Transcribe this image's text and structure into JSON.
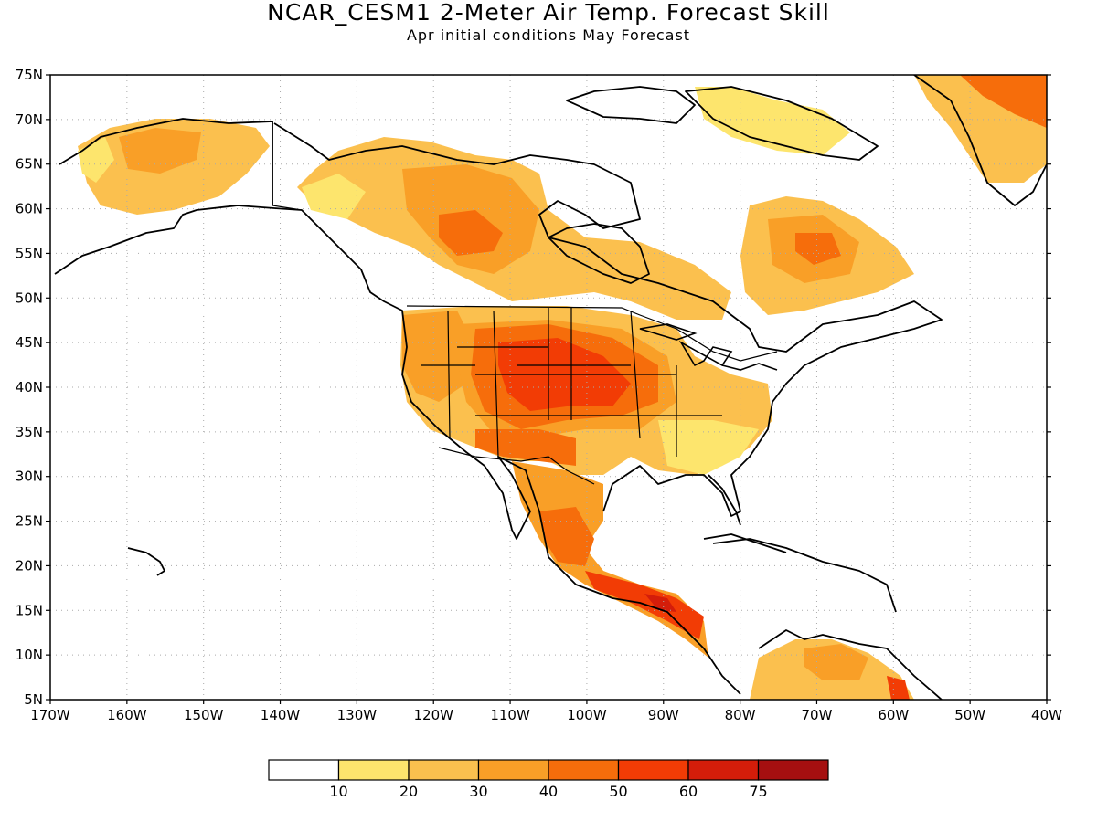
{
  "title": "NCAR_CESM1 2-Meter Air Temp. Forecast Skill",
  "subtitle": "Apr initial conditions  May Forecast",
  "map": {
    "region": "North America",
    "lon_range": [
      -170,
      -40
    ],
    "lat_range": [
      5,
      75
    ],
    "gridlines": "dotted"
  },
  "axes": {
    "lat_ticks": [
      "75N",
      "70N",
      "65N",
      "60N",
      "55N",
      "50N",
      "45N",
      "40N",
      "35N",
      "30N",
      "25N",
      "20N",
      "15N",
      "10N",
      "5N"
    ],
    "lon_ticks": [
      "170W",
      "160W",
      "150W",
      "140W",
      "130W",
      "120W",
      "110W",
      "100W",
      "90W",
      "80W",
      "70W",
      "60W",
      "50W",
      "40W"
    ]
  },
  "colorbar": {
    "labels": [
      "10",
      "20",
      "30",
      "40",
      "50",
      "60",
      "75"
    ],
    "colors": [
      "#ffffff",
      "#fde56d",
      "#fbc04e",
      "#f99f27",
      "#f66d0b",
      "#f23c05",
      "#d41d0a",
      "#a50f10"
    ]
  }
}
